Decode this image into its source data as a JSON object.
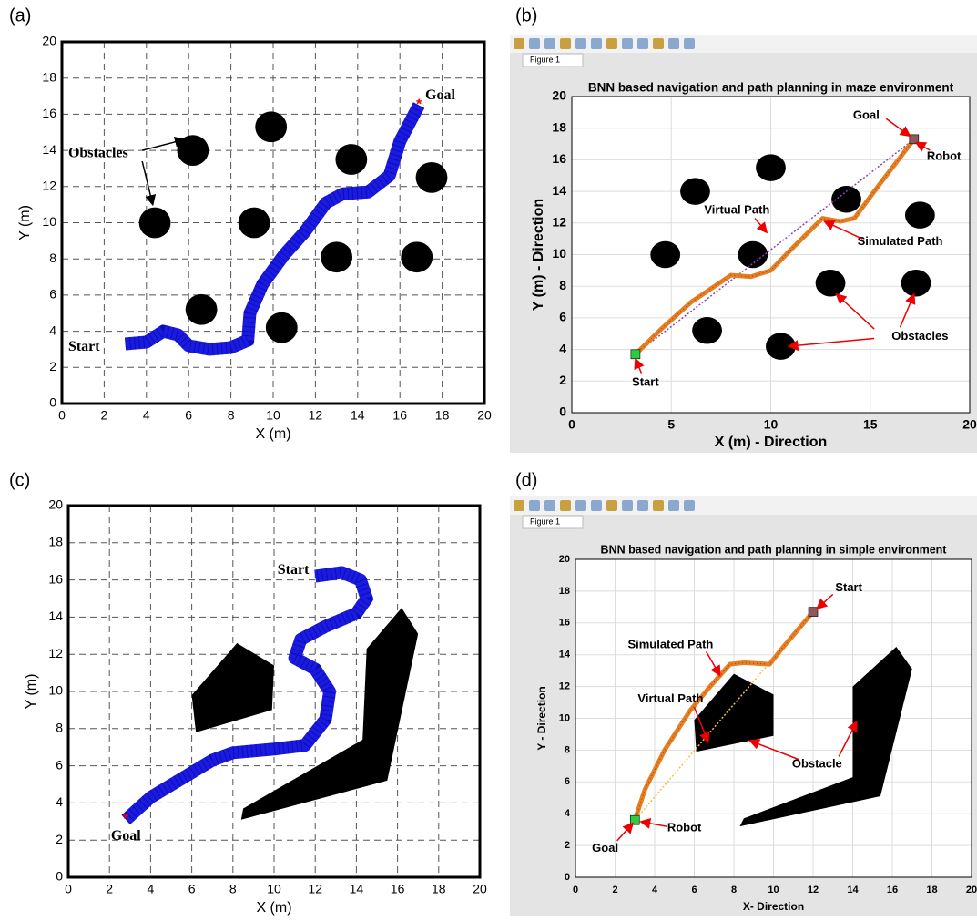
{
  "chart_data": [
    {
      "type": "path",
      "panel_label": "(a)",
      "xlabel": "X (m)",
      "ylabel": "Y (m)",
      "xlim": [
        0,
        20
      ],
      "ylim": [
        0,
        20
      ],
      "xticks": [
        0,
        2,
        4,
        6,
        8,
        10,
        12,
        14,
        16,
        18,
        20
      ],
      "yticks": [
        0,
        2,
        4,
        6,
        8,
        10,
        12,
        14,
        16,
        18,
        20
      ],
      "grid": "dashed",
      "path_color": "#1a1ae0",
      "circles": {
        "x": [
          6.2,
          9.9,
          13.7,
          17.5,
          4.4,
          9.1,
          13,
          16.8,
          6.6,
          10.4
        ],
        "y": [
          14,
          15.3,
          13.5,
          12.5,
          10,
          10,
          8.1,
          8.1,
          5.2,
          4.2
        ]
      },
      "path": {
        "x": [
          3,
          4,
          4.8,
          5.5,
          6,
          7,
          8,
          8.8,
          8.9,
          9.5,
          10.5,
          11.5,
          12.5,
          13.3,
          14.5,
          15.5,
          16,
          16.9
        ],
        "y": [
          3.3,
          3.4,
          4,
          3.8,
          3.2,
          3,
          3.1,
          3.5,
          5,
          6.6,
          8.2,
          9.5,
          11.1,
          11.6,
          11.7,
          12.6,
          14.5,
          16.5
        ]
      },
      "annotations": [
        "Goal",
        "Obstacles",
        "Start"
      ]
    },
    {
      "type": "path",
      "panel_label": "(b)",
      "window_tab": "Figure 1",
      "title": "BNN based navigation and path planning in maze environment",
      "xlabel": "X (m) - Direction",
      "ylabel": "Y (m) - Direction",
      "xlim": [
        0,
        20
      ],
      "ylim": [
        0,
        20
      ],
      "xticks": [
        0,
        5,
        10,
        15,
        20
      ],
      "yticks": [
        0,
        2,
        4,
        6,
        8,
        10,
        12,
        14,
        16,
        18,
        20
      ],
      "grid": "solid",
      "path_color": "#e67e22",
      "virtual_color": "#8e44ad",
      "circles": {
        "x": [
          6.2,
          10,
          13.8,
          17.5,
          4.7,
          9.1,
          13,
          17.3,
          6.8,
          10.5
        ],
        "y": [
          14,
          15.5,
          13.5,
          12.5,
          10,
          10,
          8.2,
          8.2,
          5.2,
          4.2
        ]
      },
      "path": {
        "x": [
          3.2,
          4.5,
          6,
          8,
          9,
          10,
          11,
          12.2,
          12.6,
          13.5,
          14.2,
          15.5,
          17.2
        ],
        "y": [
          3.7,
          5.3,
          7,
          8.7,
          8.6,
          9,
          10.3,
          11.8,
          12.3,
          12.1,
          12.3,
          14.5,
          17.3
        ]
      },
      "virtual_path": {
        "x": [
          3.2,
          17.2
        ],
        "y": [
          3.7,
          17.3
        ]
      },
      "annotations": [
        "Goal",
        "Robot",
        "Virtual Path",
        "Simulated Path",
        "Obstacles",
        "Start"
      ]
    },
    {
      "type": "path",
      "panel_label": "(c)",
      "xlabel": "X (m)",
      "ylabel": "Y (m)",
      "xlim": [
        0,
        20
      ],
      "ylim": [
        0,
        20
      ],
      "xticks": [
        0,
        2,
        4,
        6,
        8,
        10,
        12,
        14,
        16,
        18,
        20
      ],
      "yticks": [
        0,
        2,
        4,
        6,
        8,
        10,
        12,
        14,
        16,
        18,
        20
      ],
      "grid": "dashed",
      "path_color": "#1a1ae0",
      "polygons": [
        {
          "x": [
            6,
            8.2,
            10,
            9.9,
            6.2
          ],
          "y": [
            9.8,
            12.6,
            11.4,
            9,
            7.8
          ]
        },
        {
          "x": [
            8.5,
            8.4,
            15.5,
            17,
            16.2,
            14.5,
            14.3
          ],
          "y": [
            3.7,
            3.1,
            5.2,
            13.1,
            14.5,
            12.3,
            7.4
          ]
        }
      ],
      "path": {
        "x": [
          2.8,
          4,
          5.5,
          7,
          8,
          10,
          11.5,
          12.5,
          12.7,
          12,
          11,
          11.3,
          12.5,
          14,
          14.5,
          14.2,
          13.3,
          12
        ],
        "y": [
          3.1,
          4.3,
          5.3,
          6.3,
          6.7,
          6.9,
          7.1,
          8.5,
          10,
          11.2,
          11.8,
          12.8,
          13.5,
          14.2,
          15,
          16,
          16.4,
          16.2
        ]
      },
      "annotations": [
        "Start",
        "Goal"
      ]
    },
    {
      "type": "path",
      "panel_label": "(d)",
      "window_tab": "Figure 1",
      "title": "BNN based navigation and path planning in simple environment",
      "xlabel": "X- Direction",
      "ylabel": "Y - Direction",
      "xlim": [
        0,
        20
      ],
      "ylim": [
        0,
        20
      ],
      "xticks": [
        0,
        2,
        4,
        6,
        8,
        10,
        12,
        14,
        16,
        18,
        20
      ],
      "yticks": [
        0,
        2,
        4,
        6,
        8,
        10,
        12,
        14,
        16,
        18,
        20
      ],
      "grid": "solid",
      "path_color": "#e67e22",
      "virtual_color": "#f0c040",
      "polygons": [
        {
          "x": [
            6,
            8,
            10,
            10,
            6.1
          ],
          "y": [
            9.9,
            12.8,
            11.5,
            8.9,
            7.9
          ]
        },
        {
          "x": [
            8.5,
            8.3,
            15.4,
            17,
            16.2,
            14,
            14
          ],
          "y": [
            3.7,
            3.2,
            5.1,
            13.1,
            14.5,
            12,
            6.3
          ]
        }
      ],
      "path": {
        "x": [
          12,
          10.5,
          9.8,
          8.5,
          7.8,
          6.8,
          5.8,
          4.5,
          3.5,
          3
        ],
        "y": [
          16.7,
          14.5,
          13.4,
          13.5,
          13.4,
          12,
          10.5,
          8,
          5.5,
          3.6
        ]
      },
      "virtual_path": {
        "x": [
          12,
          3
        ],
        "y": [
          16.7,
          3.6
        ]
      },
      "annotations": [
        "Start",
        "Simulated Path",
        "Virtual Path",
        "Obstacle",
        "Robot",
        "Goal"
      ]
    }
  ]
}
